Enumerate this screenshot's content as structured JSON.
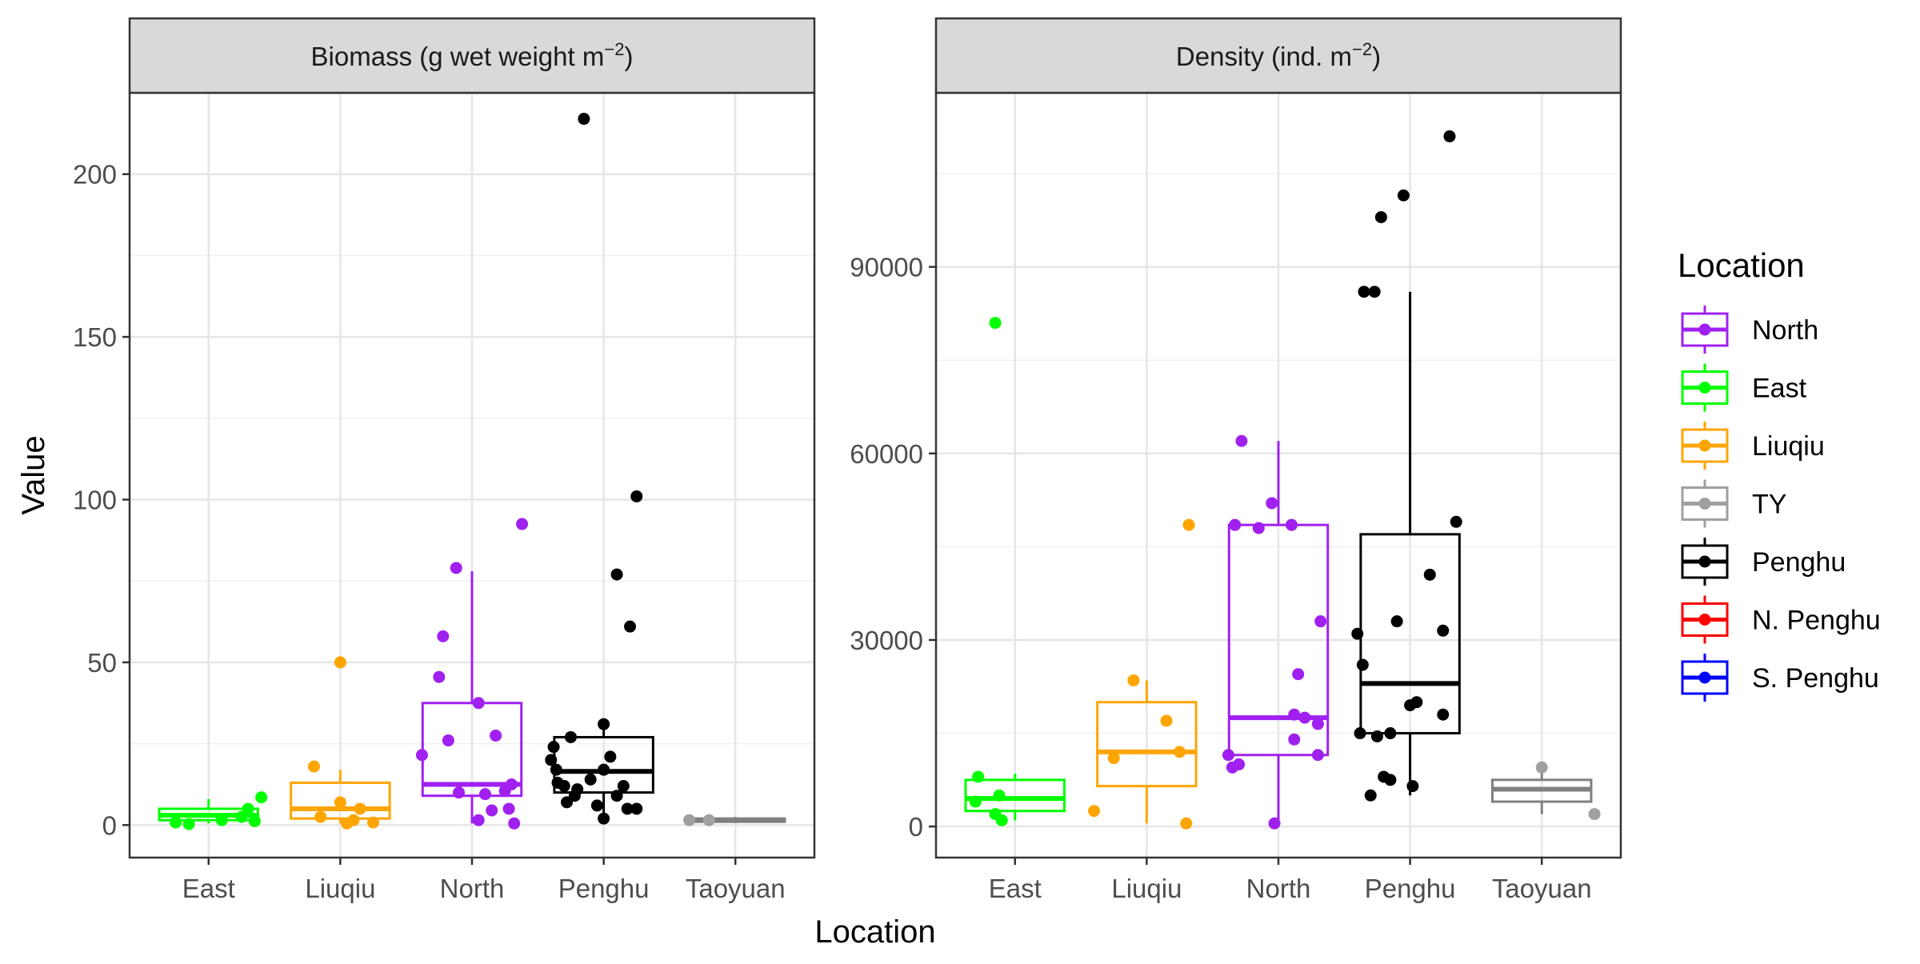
{
  "chart_data": {
    "type": "boxplot",
    "xlabel": "Location",
    "ylabel": "Value",
    "legend": {
      "title": "Location",
      "position": "right",
      "entries": [
        {
          "label": "North",
          "color": "#A020F0"
        },
        {
          "label": "East",
          "color": "#00FF00"
        },
        {
          "label": "Liuqiu",
          "color": "#FFA500"
        },
        {
          "label": "TY",
          "color": "#A0A0A0"
        },
        {
          "label": "Penghu",
          "color": "#000000"
        },
        {
          "label": "N. Penghu",
          "color": "#FF0000"
        },
        {
          "label": "S. Penghu",
          "color": "#0000FF"
        }
      ]
    },
    "colors": {
      "East": "#00FF00",
      "Liuqiu": "#FFA500",
      "North": "#A020F0",
      "Penghu": "#000000",
      "Taoyuan": "#808080",
      "TaoyuanPoints": "#A0A0A0"
    },
    "categories": [
      "East",
      "Liuqiu",
      "North",
      "Penghu",
      "Taoyuan"
    ],
    "panels": [
      {
        "strip_title": "Biomass (g wet weight m",
        "strip_sup": "−2",
        "strip_close": ")",
        "ylim": [
          -10,
          225
        ],
        "yticks": [
          0,
          50,
          100,
          150,
          200
        ],
        "ytick_labels": [
          "0",
          "50",
          "100",
          "150",
          "200"
        ],
        "grid": true,
        "boxes": [
          {
            "category": "East",
            "q1": 1.5,
            "median": 3,
            "q3": 5,
            "whisker_low": 0.5,
            "whisker_high": 8,
            "points": [
              [
                -0.25,
                0.8
              ],
              [
                -0.15,
                0.3
              ],
              [
                0.1,
                1.5
              ],
              [
                0.25,
                2.5
              ],
              [
                0.3,
                5
              ],
              [
                0.35,
                1.2
              ],
              [
                0.4,
                8.5
              ]
            ]
          },
          {
            "category": "Liuqiu",
            "q1": 2,
            "median": 5,
            "q3": 13,
            "whisker_low": 0.5,
            "whisker_high": 17,
            "points": [
              [
                -0.2,
                18
              ],
              [
                -0.15,
                2.5
              ],
              [
                0,
                7
              ],
              [
                0.05,
                0.5
              ],
              [
                0.1,
                1.5
              ],
              [
                0.15,
                5
              ],
              [
                0.25,
                0.8
              ],
              [
                0,
                50
              ]
            ]
          },
          {
            "category": "North",
            "q1": 9,
            "median": 12.5,
            "q3": 37.5,
            "whisker_low": 0.5,
            "whisker_high": 78,
            "points": [
              [
                -0.38,
                21.5
              ],
              [
                -0.25,
                45.5
              ],
              [
                -0.22,
                58
              ],
              [
                -0.18,
                26
              ],
              [
                -0.12,
                79
              ],
              [
                -0.1,
                10
              ],
              [
                0.05,
                37.5
              ],
              [
                0.05,
                1.5
              ],
              [
                0.1,
                9.5
              ],
              [
                0.15,
                4.5
              ],
              [
                0.18,
                27.5
              ],
              [
                0.25,
                10.5
              ],
              [
                0.28,
                5
              ],
              [
                0.3,
                12.5
              ],
              [
                0.32,
                0.5
              ],
              [
                0.38,
                92.5
              ]
            ]
          },
          {
            "category": "Penghu",
            "q1": 10,
            "median": 16.5,
            "q3": 27,
            "whisker_low": 2,
            "whisker_high": 31,
            "points": [
              [
                -0.4,
                20
              ],
              [
                -0.38,
                24
              ],
              [
                -0.36,
                17
              ],
              [
                -0.35,
                13
              ],
              [
                -0.3,
                12
              ],
              [
                -0.28,
                7
              ],
              [
                -0.25,
                27
              ],
              [
                -0.22,
                9
              ],
              [
                -0.2,
                11
              ],
              [
                -0.15,
                217
              ],
              [
                -0.1,
                14
              ],
              [
                -0.05,
                6
              ],
              [
                0,
                17
              ],
              [
                0,
                2
              ],
              [
                0.05,
                21
              ],
              [
                0.1,
                9
              ],
              [
                0.1,
                77
              ],
              [
                0.15,
                12
              ],
              [
                0.18,
                5
              ],
              [
                0.2,
                61
              ],
              [
                0.25,
                101
              ],
              [
                0.25,
                5
              ],
              [
                0.0,
                31
              ]
            ]
          },
          {
            "category": "Taoyuan",
            "q1": 1,
            "median": 1.5,
            "q3": 2,
            "whisker_low": 0.8,
            "whisker_high": 2.5,
            "points": [
              [
                -0.35,
                1.5
              ],
              [
                -0.2,
                1.5
              ]
            ]
          }
        ]
      },
      {
        "strip_title": "Density (ind. m",
        "strip_sup": "−2",
        "strip_close": ")",
        "ylim": [
          -5000,
          118000
        ],
        "yticks": [
          0,
          30000,
          60000,
          90000
        ],
        "ytick_labels": [
          "0",
          "30000",
          "60000",
          "90000"
        ],
        "grid": true,
        "boxes": [
          {
            "category": "East",
            "q1": 2500,
            "median": 4500,
            "q3": 7500,
            "whisker_low": 1000,
            "whisker_high": 8500,
            "points": [
              [
                -0.3,
                4000
              ],
              [
                -0.28,
                8000
              ],
              [
                -0.15,
                2000
              ],
              [
                -0.12,
                5000
              ],
              [
                -0.1,
                1000
              ],
              [
                -0.15,
                81000
              ]
            ]
          },
          {
            "category": "Liuqiu",
            "q1": 6500,
            "median": 12000,
            "q3": 20000,
            "whisker_low": 500,
            "whisker_high": 23500,
            "points": [
              [
                -0.4,
                2500
              ],
              [
                -0.25,
                11000
              ],
              [
                -0.1,
                23500
              ],
              [
                0.15,
                17000
              ],
              [
                0.25,
                12000
              ],
              [
                0.3,
                500
              ],
              [
                0.32,
                48500
              ]
            ]
          },
          {
            "category": "North",
            "q1": 11500,
            "median": 17500,
            "q3": 48500,
            "whisker_low": 500,
            "whisker_high": 62000,
            "points": [
              [
                -0.38,
                11500
              ],
              [
                -0.35,
                9500
              ],
              [
                -0.33,
                48500
              ],
              [
                -0.3,
                10000
              ],
              [
                -0.28,
                62000
              ],
              [
                -0.15,
                48000
              ],
              [
                -0.05,
                52000
              ],
              [
                -0.03,
                500
              ],
              [
                0.1,
                48500
              ],
              [
                0.12,
                14000
              ],
              [
                0.12,
                18000
              ],
              [
                0.15,
                24500
              ],
              [
                0.2,
                17500
              ],
              [
                0.3,
                11500
              ],
              [
                0.3,
                16500
              ],
              [
                0.32,
                33000
              ]
            ]
          },
          {
            "category": "Penghu",
            "q1": 15000,
            "median": 23000,
            "q3": 47000,
            "whisker_low": 5000,
            "whisker_high": 86000,
            "points": [
              [
                -0.4,
                31000
              ],
              [
                -0.38,
                15000
              ],
              [
                -0.36,
                26000
              ],
              [
                -0.35,
                86000
              ],
              [
                -0.3,
                5000
              ],
              [
                -0.27,
                86000
              ],
              [
                -0.25,
                14500
              ],
              [
                -0.22,
                98000
              ],
              [
                -0.2,
                8000
              ],
              [
                -0.15,
                15000
              ],
              [
                -0.15,
                7500
              ],
              [
                -0.1,
                33000
              ],
              [
                -0.05,
                101500
              ],
              [
                0,
                19500
              ],
              [
                0.02,
                6500
              ],
              [
                0.05,
                20000
              ],
              [
                0.15,
                40500
              ],
              [
                0.25,
                31500
              ],
              [
                0.25,
                18000
              ],
              [
                0.3,
                111000
              ],
              [
                0.35,
                49000
              ]
            ]
          },
          {
            "category": "Taoyuan",
            "q1": 4000,
            "median": 6000,
            "q3": 7500,
            "whisker_low": 2000,
            "whisker_high": 9000,
            "points": [
              [
                0,
                9500
              ],
              [
                0.4,
                2000
              ]
            ]
          }
        ]
      }
    ]
  }
}
